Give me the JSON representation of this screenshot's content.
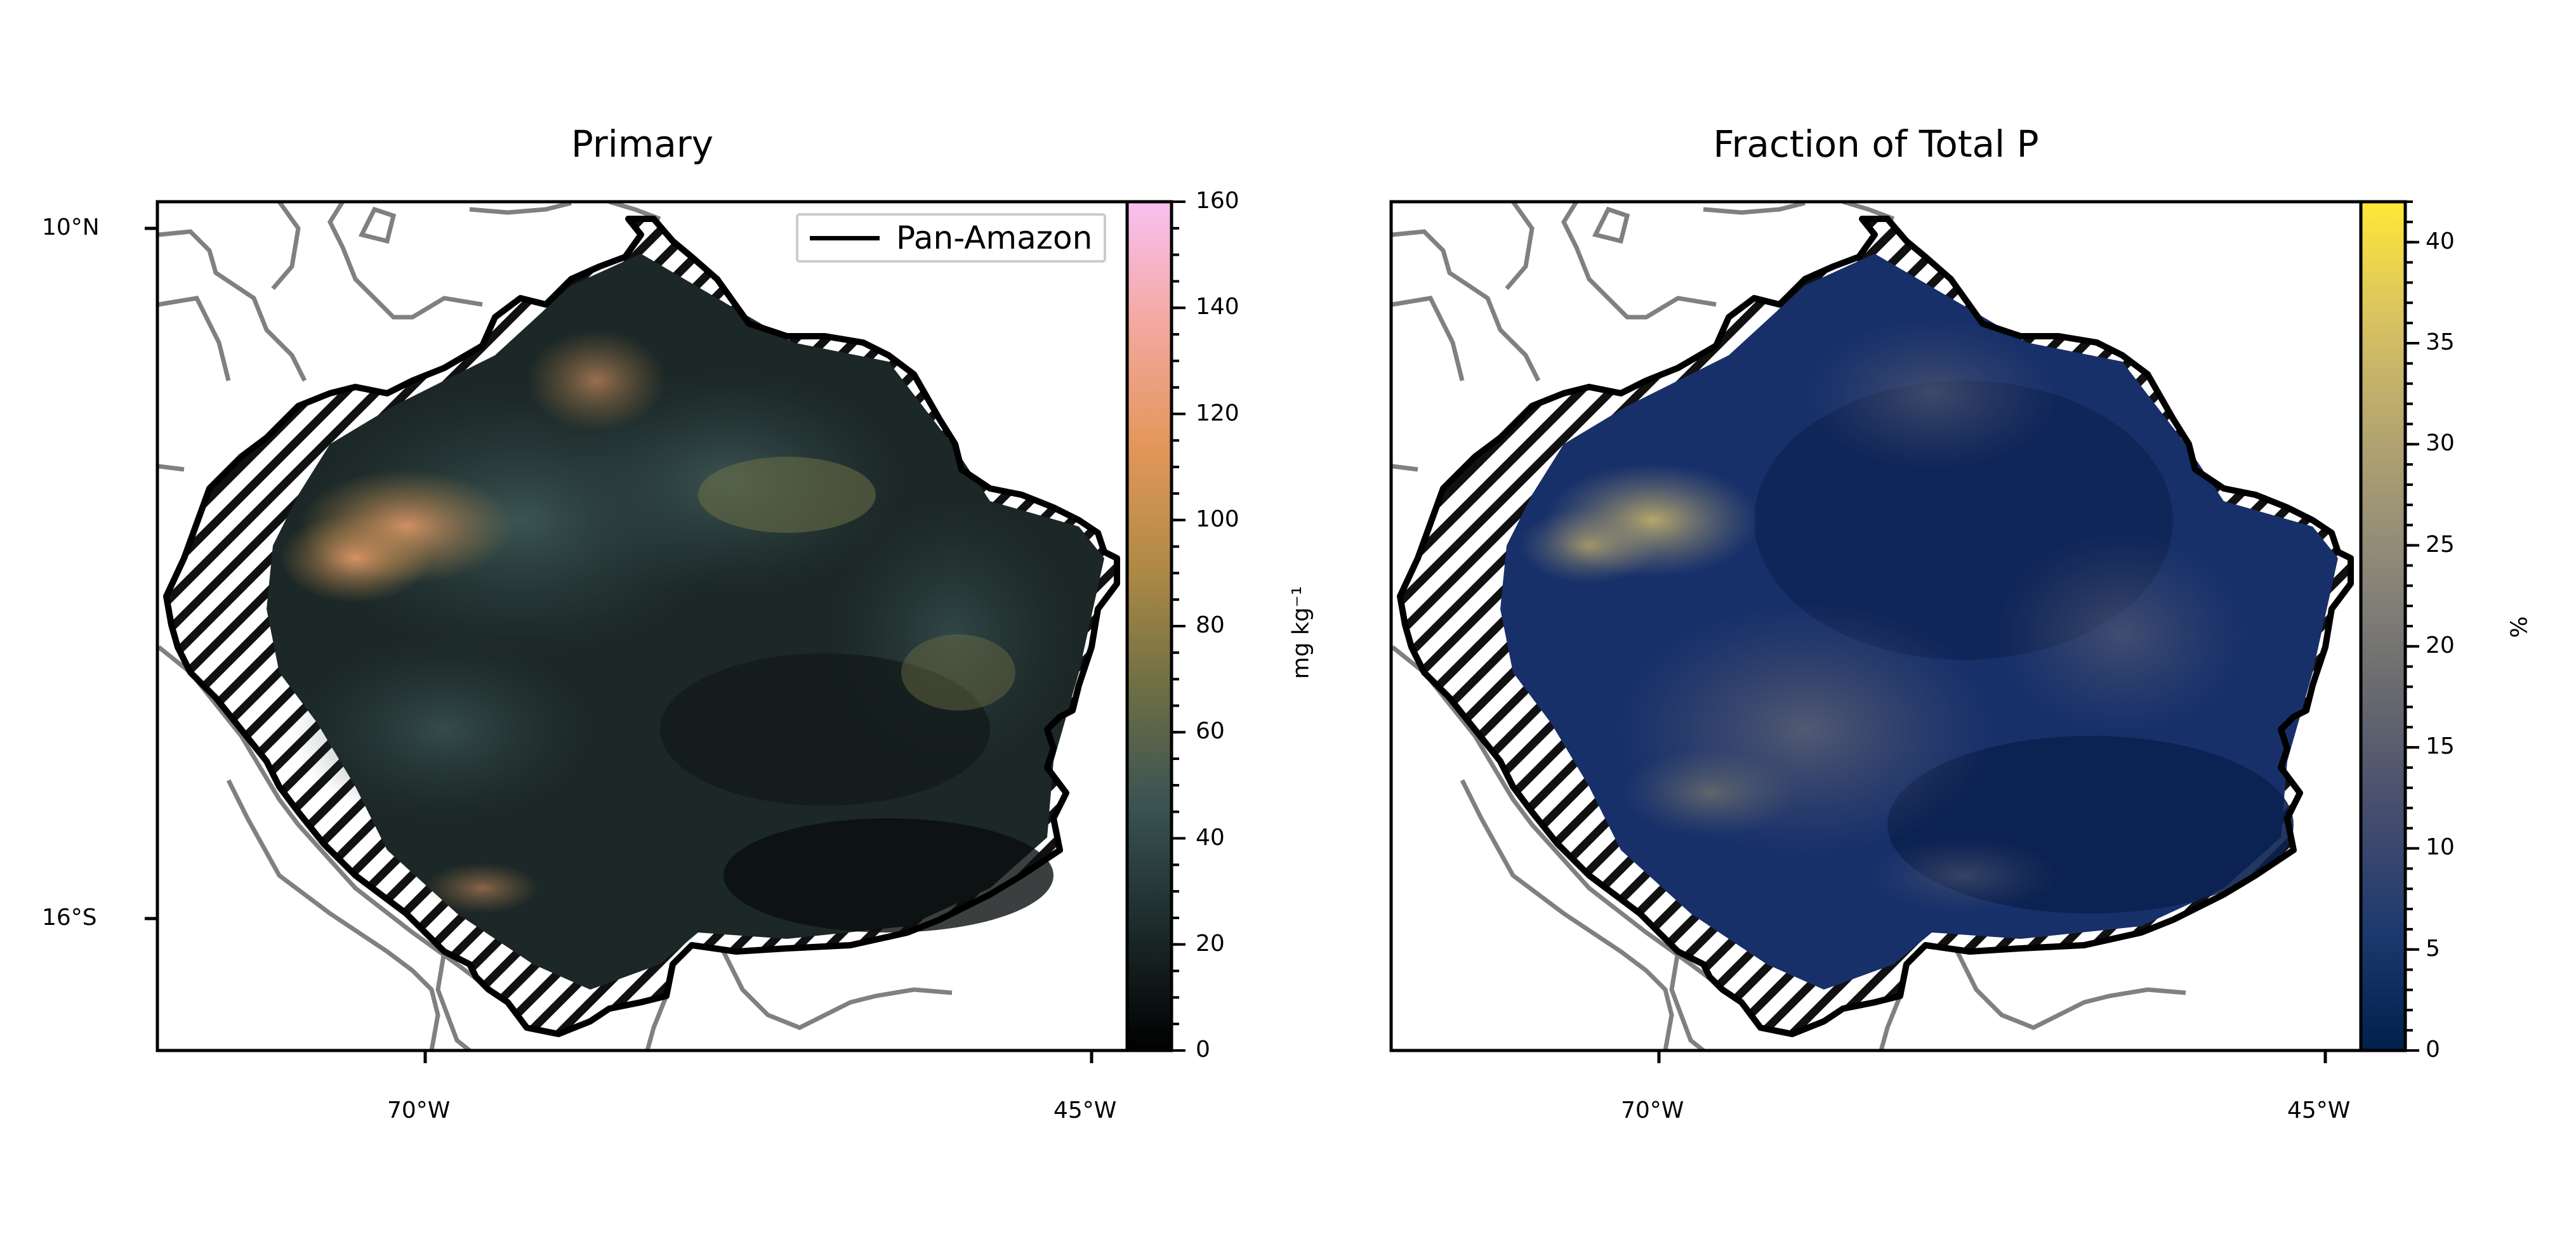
{
  "chart_data": [
    {
      "type": "heatmap",
      "title": "Primary",
      "xticks": [
        "70°W",
        "45°W"
      ],
      "yticks": [
        "10°N",
        "16°S"
      ],
      "legend": {
        "label": "Pan-Amazon",
        "placement": "top-right"
      },
      "colorbar": {
        "label": "mg kg⁻¹",
        "ticks": [
          "0",
          "20",
          "40",
          "60",
          "80",
          "100",
          "120",
          "140",
          "160"
        ],
        "range": [
          0,
          160
        ],
        "colors": [
          "#000000",
          "#1c2a2a",
          "#3a5252",
          "#6e6f45",
          "#b08a45",
          "#e3975a",
          "#f4a8a0",
          "#f7c0f0"
        ]
      }
    },
    {
      "type": "heatmap",
      "title": "Fraction of Total P",
      "xticks": [
        "70°W",
        "45°W"
      ],
      "colorbar": {
        "label": "%",
        "ticks": [
          "0",
          "5",
          "10",
          "15",
          "20",
          "25",
          "30",
          "35",
          "40"
        ],
        "range": [
          0,
          42
        ],
        "colors": [
          "#00204c",
          "#1d3a6e",
          "#474e6d",
          "#6a6b70",
          "#8c8778",
          "#b0a270",
          "#d7c163",
          "#fee838"
        ]
      }
    }
  ]
}
